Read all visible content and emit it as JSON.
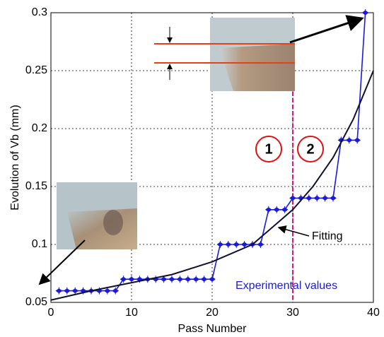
{
  "chart_data": {
    "type": "line",
    "xlabel": "Pass Number",
    "ylabel": "Evolution of Vb (mm)",
    "xlim": [
      0,
      40
    ],
    "xticks": [
      0,
      10,
      20,
      30,
      40
    ],
    "ylim": [
      0.05,
      0.3
    ],
    "yticks": [
      0.05,
      0.1,
      0.15,
      0.2,
      0.25,
      0.3
    ],
    "grid": true,
    "series": [
      {
        "name": "Experimental values",
        "color": "#1a1adb",
        "x": [
          1,
          2,
          3,
          4,
          5,
          6,
          7,
          8,
          9,
          10,
          11,
          12,
          13,
          14,
          15,
          16,
          17,
          18,
          19,
          20,
          21,
          22,
          23,
          24,
          25,
          26,
          27,
          28,
          29,
          30,
          31,
          32,
          33,
          34,
          35,
          36,
          37,
          38,
          39
        ],
        "values": [
          0.06,
          0.06,
          0.06,
          0.06,
          0.06,
          0.06,
          0.06,
          0.06,
          0.07,
          0.07,
          0.07,
          0.07,
          0.07,
          0.07,
          0.07,
          0.07,
          0.07,
          0.07,
          0.07,
          0.07,
          0.1,
          0.1,
          0.1,
          0.1,
          0.1,
          0.1,
          0.13,
          0.13,
          0.13,
          0.14,
          0.14,
          0.14,
          0.14,
          0.14,
          0.14,
          0.19,
          0.19,
          0.19,
          0.3
        ]
      },
      {
        "name": "Fitting",
        "color": "#101030",
        "x": [
          0,
          5,
          10,
          15,
          20,
          25,
          30,
          32.5,
          35,
          37.5,
          40
        ],
        "values": [
          0.052,
          0.06,
          0.067,
          0.074,
          0.085,
          0.1,
          0.13,
          0.15,
          0.175,
          0.208,
          0.25
        ]
      }
    ],
    "vline": {
      "x": 30,
      "color": "#e0157f"
    },
    "regions": [
      "1",
      "2"
    ]
  }
}
